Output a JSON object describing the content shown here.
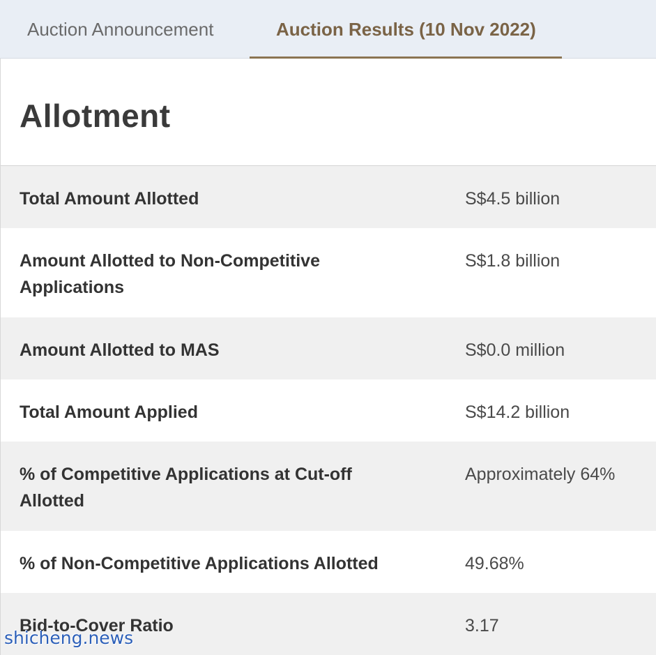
{
  "tabs": [
    {
      "label": "Auction Announcement",
      "active": false
    },
    {
      "label": "Auction Results (10 Nov 2022)",
      "active": true
    }
  ],
  "section": {
    "heading": "Allotment"
  },
  "rows": [
    {
      "label": "Total Amount Allotted",
      "value": "S$4.5 billion"
    },
    {
      "label": "Amount Allotted to Non-Competitive Applications",
      "value": "S$1.8 billion"
    },
    {
      "label": "Amount Allotted to MAS",
      "value": "S$0.0 million"
    },
    {
      "label": "Total Amount Applied",
      "value": "S$14.2 billion"
    },
    {
      "label": "% of Competitive Applications at Cut-off Allotted",
      "value": "Approximately 64%"
    },
    {
      "label": "% of Non-Competitive Applications Allotted",
      "value": "49.68%"
    },
    {
      "label": "Bid-to-Cover Ratio",
      "value": "3.17"
    }
  ],
  "watermark": "shicheng.news",
  "colors": {
    "active_tab": "#7a6346",
    "tab_underline": "#8a7452",
    "tabbar_bg": "#e9eef5",
    "row_shade": "#f0f0f0"
  }
}
